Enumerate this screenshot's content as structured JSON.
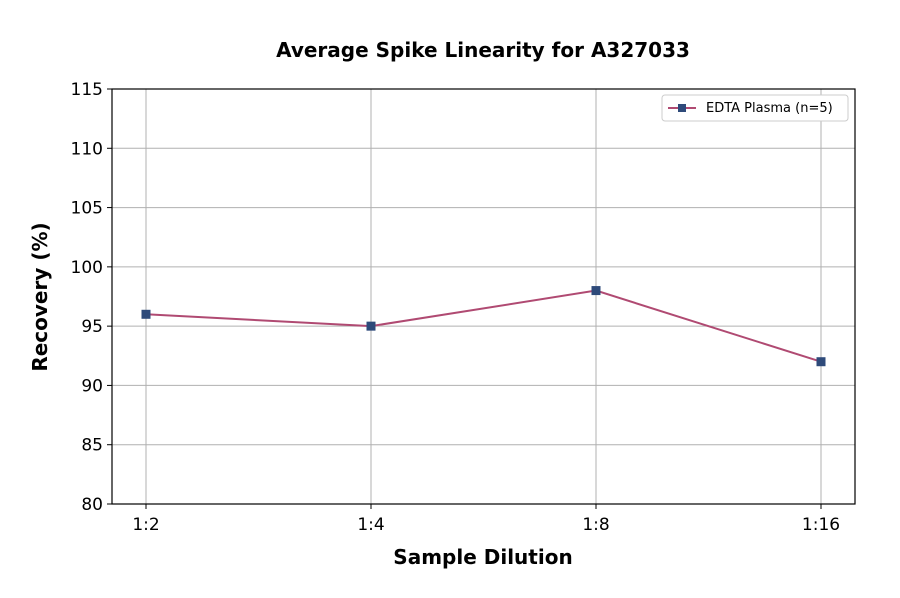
{
  "chart_data": {
    "type": "line",
    "title": "Average Spike Linearity for A327033",
    "xlabel": "Sample Dilution",
    "ylabel": "Recovery (%)",
    "categories": [
      "1:2",
      "1:4",
      "1:8",
      "1:16"
    ],
    "series": [
      {
        "name": "EDTA Plasma (n=5)",
        "values": [
          96,
          95,
          98,
          92
        ],
        "line_color": "#b04a72",
        "marker_color": "#2e4a7a",
        "marker": "square"
      }
    ],
    "ylim": [
      80,
      115
    ],
    "yticks": [
      80,
      85,
      90,
      95,
      100,
      105,
      110,
      115
    ],
    "grid": true,
    "legend_position": "top-right"
  }
}
